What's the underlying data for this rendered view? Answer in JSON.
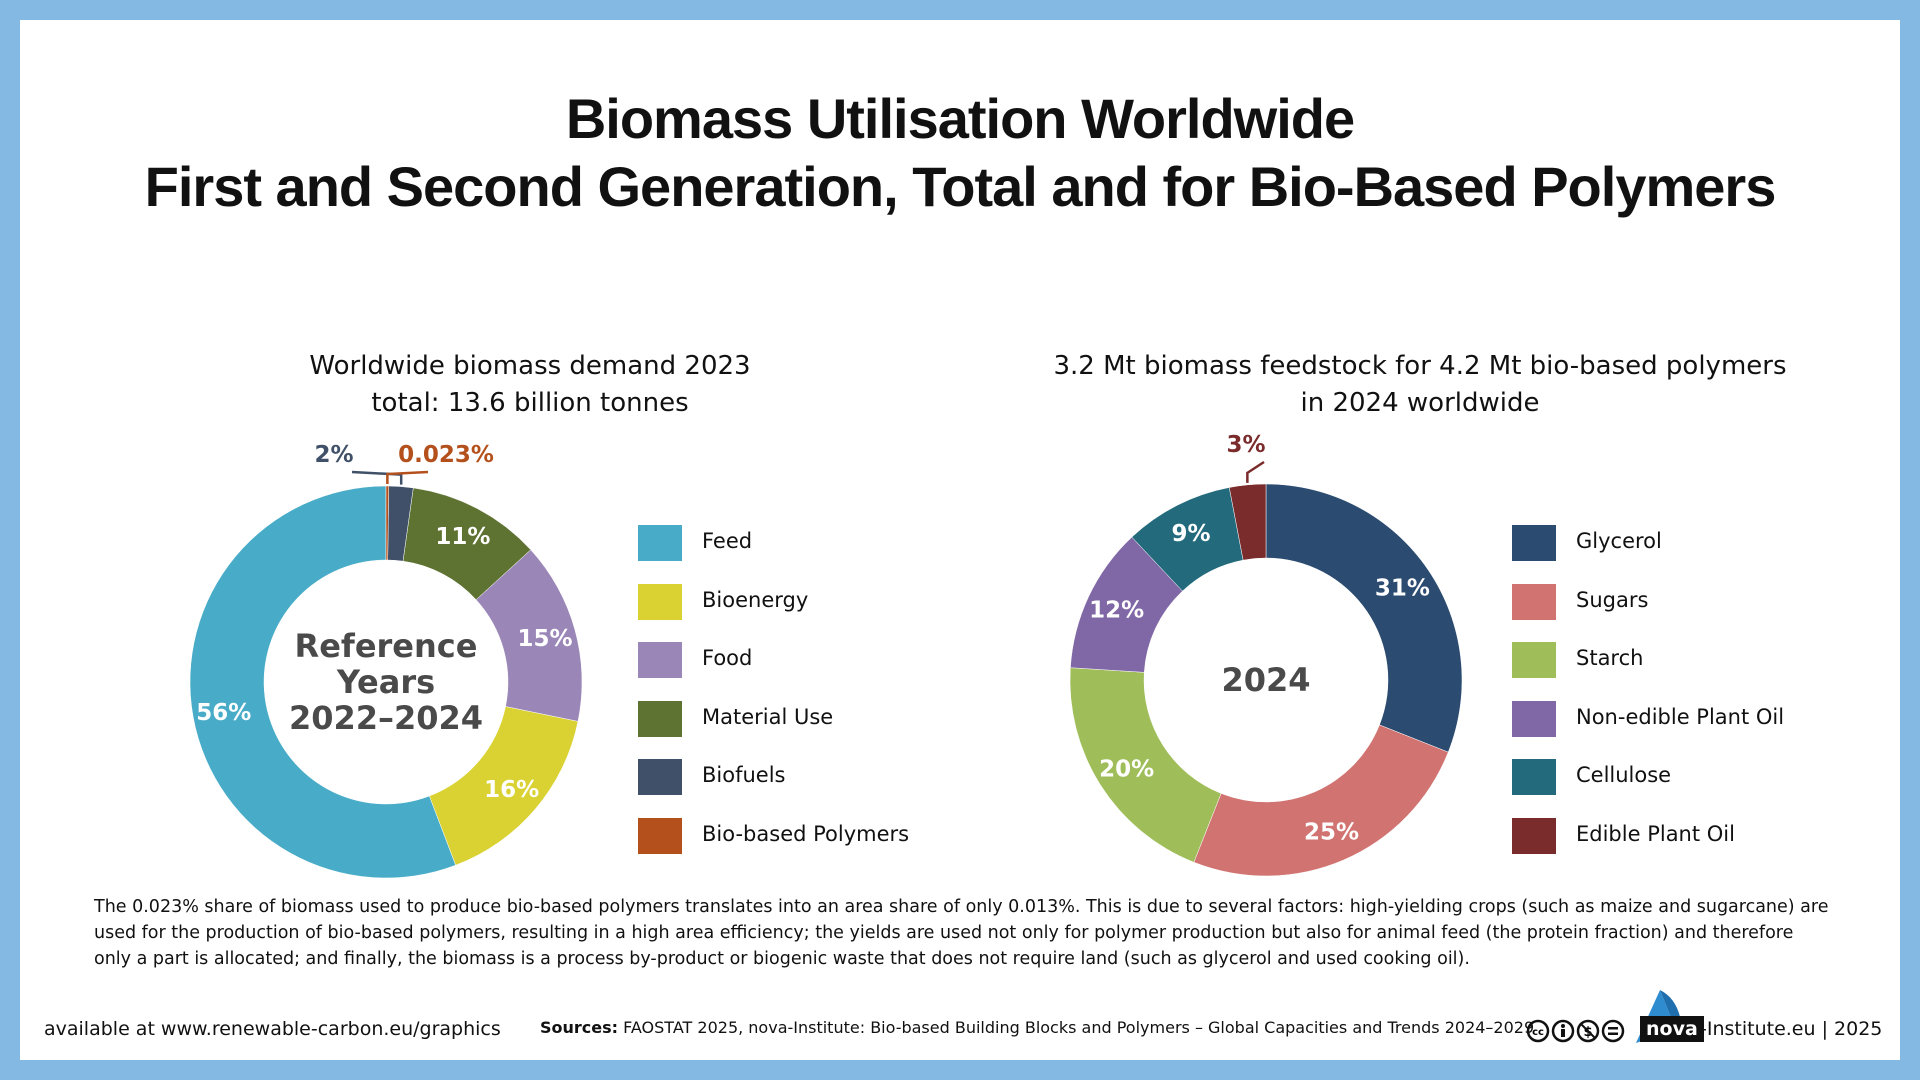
{
  "title": {
    "line1": "Biomass Utilisation Worldwide",
    "line2": "First and Second Generation, Total and for Bio-Based Polymers"
  },
  "chart_data": [
    {
      "type": "pie",
      "title_line1": "Worldwide biomass demand 2023",
      "title_line2": "total: 13.6 billion tonnes",
      "center_text": [
        "Reference",
        "Years",
        "2022–2024"
      ],
      "slices": [
        {
          "name": "Feed",
          "value": 56,
          "label": "56%",
          "color": "#48acc8"
        },
        {
          "name": "Bioenergy",
          "value": 16,
          "label": "16%",
          "color": "#d9d232"
        },
        {
          "name": "Food",
          "value": 15,
          "label": "15%",
          "color": "#9a87b8"
        },
        {
          "name": "Material Use",
          "value": 11,
          "label": "11%",
          "color": "#5e7232"
        },
        {
          "name": "Biofuels",
          "value": 2,
          "label": "2%",
          "color": "#3f5068"
        },
        {
          "name": "Bio-based Polymers",
          "value": 0.023,
          "label": "0.023%",
          "color": "#b4501c"
        }
      ],
      "legend_position": "right"
    },
    {
      "type": "pie",
      "title_line1": "3.2 Mt biomass feedstock for 4.2 Mt bio-based polymers",
      "title_line2": "in 2024 worldwide",
      "center_text": [
        "2024"
      ],
      "slices": [
        {
          "name": "Glycerol",
          "value": 31,
          "label": "31%",
          "color": "#2b4b70"
        },
        {
          "name": "Sugars",
          "value": 25,
          "label": "25%",
          "color": "#d17471"
        },
        {
          "name": "Starch",
          "value": 20,
          "label": "20%",
          "color": "#9fbd59"
        },
        {
          "name": "Non-edible Plant Oil",
          "value": 12,
          "label": "12%",
          "color": "#8068a6"
        },
        {
          "name": "Cellulose",
          "value": 9,
          "label": "9%",
          "color": "#236b7c"
        },
        {
          "name": "Edible Plant Oil",
          "value": 3,
          "label": "3%",
          "color": "#7a2b2b"
        }
      ],
      "legend_position": "right"
    }
  ],
  "note": "The 0.023% share of biomass used to produce bio-based polymers translates into an area share of only 0.013%. This is due to several factors: high-yielding crops (such as maize and sugarcane) are used for the production of bio-based polymers, resulting in a high area efficiency; the yields are used not only for polymer production but also for animal feed (the protein fraction) and therefore only a part is allocated; and finally, the biomass is a process by-product or biogenic waste that does not require land (such as glycerol and used cooking oil).",
  "footer": {
    "available": "available at www.renewable-carbon.eu/graphics",
    "sources_label": "Sources:",
    "sources_text": "FAOSTAT 2025, nova-Institute: Bio-based Building Blocks and Polymers – Global Capacities and Trends 2024–2029",
    "license_icons": [
      "cc-icon",
      "by-icon",
      "nc-icon",
      "nd-icon"
    ],
    "nova_box": "nova",
    "nova_suffix": "-Institute.eu | 2025"
  },
  "colors": {
    "frame": "#84b9e3",
    "background": "#ffffff",
    "center_text": "#4a4a4a"
  }
}
